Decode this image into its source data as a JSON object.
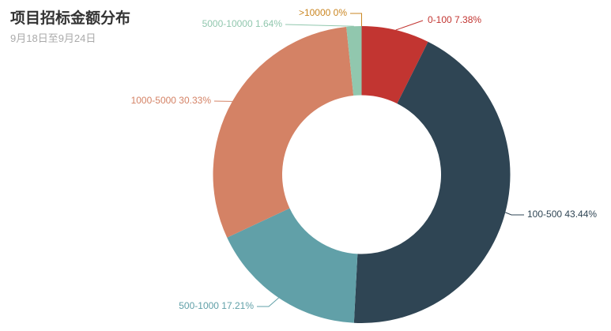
{
  "header": {
    "title": "项目招标金额分布",
    "subtitle": "9月18日至9月24日"
  },
  "chart_data": {
    "type": "pie",
    "variant": "donut",
    "title": "项目招标金额分布",
    "subtitle": "9月18日至9月24日",
    "legend_position": "none",
    "label_style": "outside-with-leader-lines",
    "direction": "clockwise",
    "start_angle_deg": 0,
    "categories": [
      "0-100",
      "100-500",
      "500-1000",
      "1000-5000",
      "5000-10000",
      ">10000"
    ],
    "values": [
      7.38,
      43.44,
      17.21,
      30.33,
      1.64,
      0
    ],
    "labels": [
      "0-100 7.38%",
      "100-500 43.44%",
      "500-1000 17.21%",
      "1000-5000 30.33%",
      "5000-10000 1.64%",
      ">10000 0%"
    ],
    "colors": [
      "#c23531",
      "#2f4554",
      "#61a0a8",
      "#d48265",
      "#91c7ae",
      "#ca8622"
    ],
    "colors_meta": {
      "title_text": "#333333",
      "subtitle_text": "#aaaaaa",
      "background": "#ffffff"
    }
  }
}
